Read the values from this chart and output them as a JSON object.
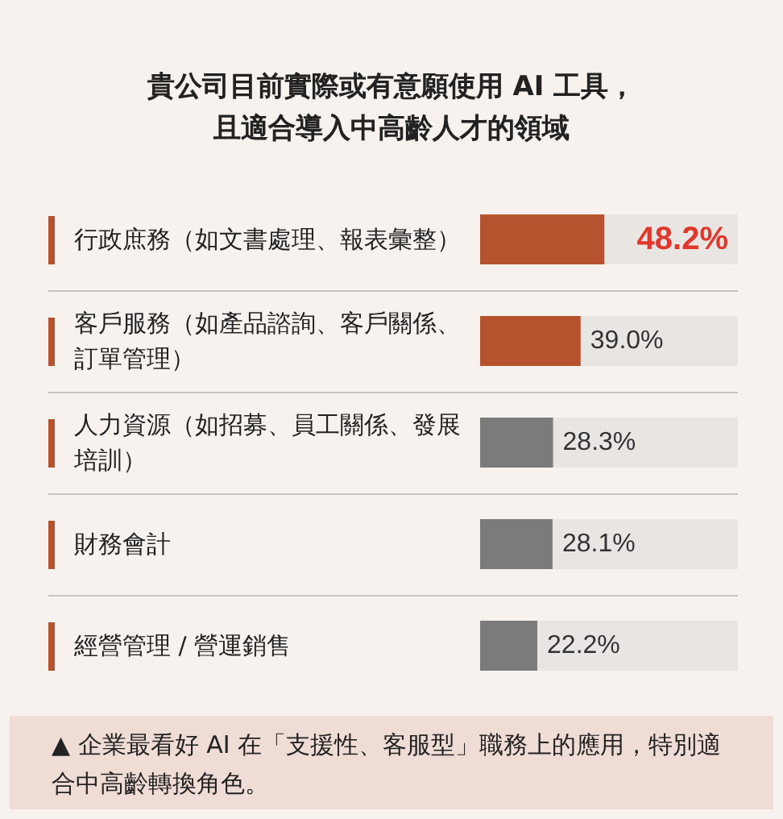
{
  "chart_data": {
    "type": "bar",
    "orientation": "horizontal",
    "title": "貴公司目前實際或有意願使用 AI 工具，且適合導入中高齡人才的領域",
    "categories": [
      "行政庶務（如文書處理、報表彙整）",
      "客戶服務（如產品諮詢、客戶關係、訂單管理）",
      "人力資源（如招募、員工關係、發展培訓）",
      "財務會計",
      "經營管理 / 營運銷售"
    ],
    "values": [
      48.2,
      39.0,
      28.3,
      28.1,
      22.2
    ],
    "colors": [
      "#b5532e",
      "#b5532e",
      "#7b7b7b",
      "#7b7b7b",
      "#7b7b7b"
    ],
    "value_labels": [
      "48.2%",
      "39.0%",
      "28.3%",
      "28.1%",
      "22.2%"
    ],
    "xlim": [
      0,
      100
    ],
    "tick_labels": false,
    "annotations": [
      "▲ 企業最看好 AI 在「支援性、客服型」職務上的應用，特別適合中高齡轉換角色。"
    ]
  }
}
